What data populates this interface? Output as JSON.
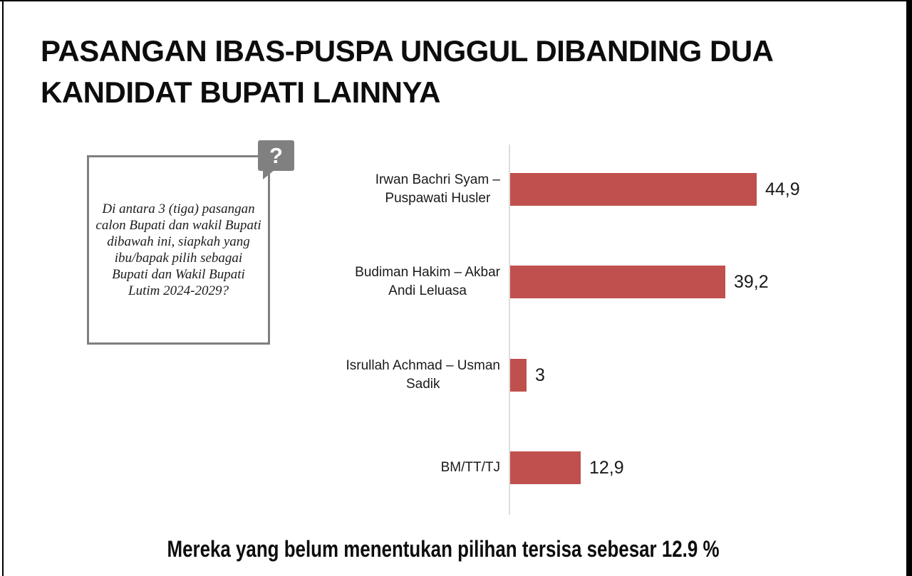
{
  "title": {
    "lines": [
      "PASANGAN IBAS-PUSPA UNGGUL DIBANDING DUA",
      "KANDIDAT BUPATI LAINNYA"
    ]
  },
  "question_box": {
    "icon": "?",
    "text": "Di antara 3 (tiga) pasangan calon Bupati dan wakil Bupati dibawah ini, siapkah yang ibu/bapak pilih sebagai  Bupati dan Wakil Bupati Lutim 2024-2029?"
  },
  "footnote": "Mereka yang belum menentukan pilihan tersisa sebesar 12.9 %",
  "chart_data": {
    "type": "bar",
    "orientation": "horizontal",
    "title": "",
    "xlabel": "",
    "ylabel": "",
    "categories": [
      "Irwan Bachri Syam – Puspawati Husler",
      "Budiman Hakim – Akbar Andi Leluasa",
      "Isrullah Achmad – Usman Sadik",
      "BM/TT/TJ"
    ],
    "category_label_lines": [
      [
        "Irwan Bachri Syam –",
        "Puspawati Husler"
      ],
      [
        "Budiman Hakim – Akbar",
        "Andi Leluasa"
      ],
      [
        "Isrullah Achmad – Usman",
        "Sadik"
      ],
      [
        "BM/TT/TJ"
      ]
    ],
    "values": [
      44.9,
      39.2,
      3,
      12.9
    ],
    "value_labels": [
      "44,9",
      "39,2",
      "3",
      "12,9"
    ],
    "xlim": [
      0,
      50
    ],
    "grid": false,
    "legend": false,
    "bar_color": "#C0504D",
    "axis_color": "#DCDCDC"
  }
}
